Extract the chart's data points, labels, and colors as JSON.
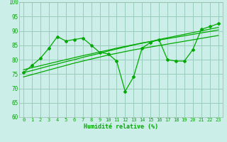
{
  "xlabel": "Humidité relative (%)",
  "xlim": [
    -0.5,
    23.5
  ],
  "ylim": [
    60,
    100
  ],
  "xticks": [
    0,
    1,
    2,
    3,
    4,
    5,
    6,
    7,
    8,
    9,
    10,
    11,
    12,
    13,
    14,
    15,
    16,
    17,
    18,
    19,
    20,
    21,
    22,
    23
  ],
  "yticks": [
    60,
    65,
    70,
    75,
    80,
    85,
    90,
    95,
    100
  ],
  "bg_color": "#cceee8",
  "grid_color": "#99ccbb",
  "line_color": "#00aa00",
  "main_line_y": [
    75.5,
    78,
    80.5,
    84,
    88,
    86.5,
    87,
    87.5,
    85,
    82.5,
    82,
    79.5,
    69,
    74,
    84,
    86,
    87,
    80,
    79.5,
    79.5,
    83.5,
    90.5,
    91.5,
    92.5
  ],
  "trend1_y": [
    75.5,
    76.2,
    77.0,
    77.8,
    78.5,
    79.3,
    80.0,
    80.8,
    81.5,
    82.2,
    83.0,
    83.7,
    84.4,
    85.1,
    85.7,
    86.3,
    87.0,
    87.6,
    88.2,
    88.8,
    89.4,
    90.0,
    90.6,
    91.2
  ],
  "trend2_y": [
    76.5,
    77.2,
    77.9,
    78.6,
    79.3,
    80.0,
    80.7,
    81.4,
    82.0,
    82.7,
    83.3,
    84.0,
    84.6,
    85.2,
    85.8,
    86.3,
    86.8,
    87.3,
    87.8,
    88.3,
    88.8,
    89.3,
    89.8,
    90.3
  ],
  "trend3_y": [
    74.0,
    74.8,
    75.6,
    76.4,
    77.2,
    78.0,
    78.8,
    79.5,
    80.2,
    80.9,
    81.6,
    82.2,
    82.8,
    83.4,
    83.9,
    84.4,
    84.9,
    85.4,
    85.9,
    86.4,
    86.9,
    87.4,
    87.9,
    88.4
  ]
}
